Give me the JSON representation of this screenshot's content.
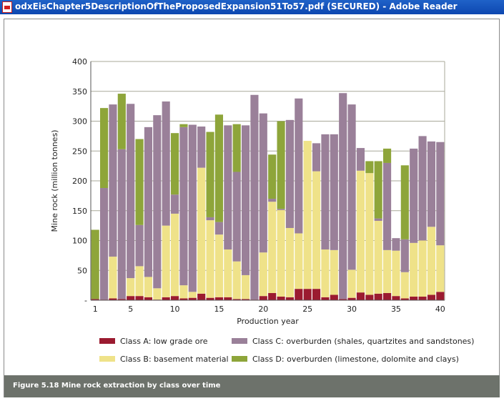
{
  "window": {
    "title": "odxEisChapter5DescriptionOfTheProposedExpansion51To57.pdf (SECURED) - Adobe Reader",
    "icon": "pdf-document-icon"
  },
  "figure": {
    "caption": "Figure 5.18  Mine rock extraction by class over time"
  },
  "colors": {
    "class_a": "#9b1b30",
    "class_b": "#efe289",
    "class_c": "#9a8099",
    "class_d": "#8ea53a",
    "caption_bg": "#6d726b",
    "grid": "#a8a899"
  },
  "chart_data": {
    "type": "bar",
    "stacked": true,
    "xlabel": "Production year",
    "ylabel": "Mine rock (million tonnes)",
    "ylim": [
      0,
      400
    ],
    "y_ticks": [
      "-",
      "50",
      "100",
      "150",
      "200",
      "250",
      "300",
      "350",
      "400"
    ],
    "x_ticks": [
      "1",
      "5",
      "10",
      "15",
      "20",
      "25",
      "30",
      "35",
      "40"
    ],
    "x_tick_years": [
      1,
      5,
      10,
      15,
      20,
      25,
      30,
      35,
      40
    ],
    "grid": true,
    "legend_position": "bottom",
    "categories": [
      1,
      2,
      3,
      4,
      5,
      6,
      7,
      8,
      9,
      10,
      11,
      12,
      13,
      14,
      15,
      16,
      17,
      18,
      19,
      20,
      21,
      22,
      23,
      24,
      25,
      26,
      27,
      28,
      29,
      30,
      31,
      32,
      33,
      34,
      35,
      36,
      37,
      38,
      39,
      40
    ],
    "series": [
      {
        "name": "Class A: low grade ore",
        "values": [
          2,
          1,
          3,
          2,
          7,
          7,
          5,
          1,
          5,
          7,
          3,
          4,
          11,
          4,
          5,
          5,
          2,
          2,
          1,
          7,
          12,
          6,
          5,
          19,
          19,
          19,
          5,
          9,
          2,
          4,
          13,
          9,
          11,
          12,
          7,
          3,
          6,
          6,
          9,
          14
        ]
      },
      {
        "name": "Class B: basement material",
        "values": [
          0,
          0,
          70,
          0,
          30,
          50,
          34,
          19,
          120,
          138,
          22,
          10,
          211,
          130,
          105,
          80,
          63,
          40,
          0,
          73,
          153,
          145,
          116,
          93,
          248,
          197,
          80,
          75,
          0,
          47,
          204,
          204,
          122,
          72,
          76,
          44,
          90,
          94,
          114,
          78
        ]
      },
      {
        "name": "Class C: overburden (shales, quartzites and sandstones)",
        "values": [
          0,
          187,
          255,
          251,
          292,
          69,
          251,
          290,
          208,
          32,
          265,
          280,
          69,
          5,
          21,
          208,
          150,
          251,
          343,
          233,
          5,
          2,
          181,
          226,
          0,
          47,
          193,
          194,
          345,
          277,
          38,
          0,
          4,
          146,
          21,
          55,
          158,
          175,
          143,
          173
        ]
      },
      {
        "name": "Class D: overburden (limestone, dolomite and clays)",
        "values": [
          116,
          134,
          0,
          93,
          0,
          144,
          0,
          0,
          0,
          103,
          5,
          0,
          0,
          143,
          180,
          0,
          80,
          0,
          0,
          0,
          74,
          147,
          0,
          0,
          0,
          0,
          0,
          0,
          0,
          0,
          0,
          20,
          96,
          24,
          0,
          124,
          0,
          0,
          0,
          0
        ]
      }
    ]
  }
}
